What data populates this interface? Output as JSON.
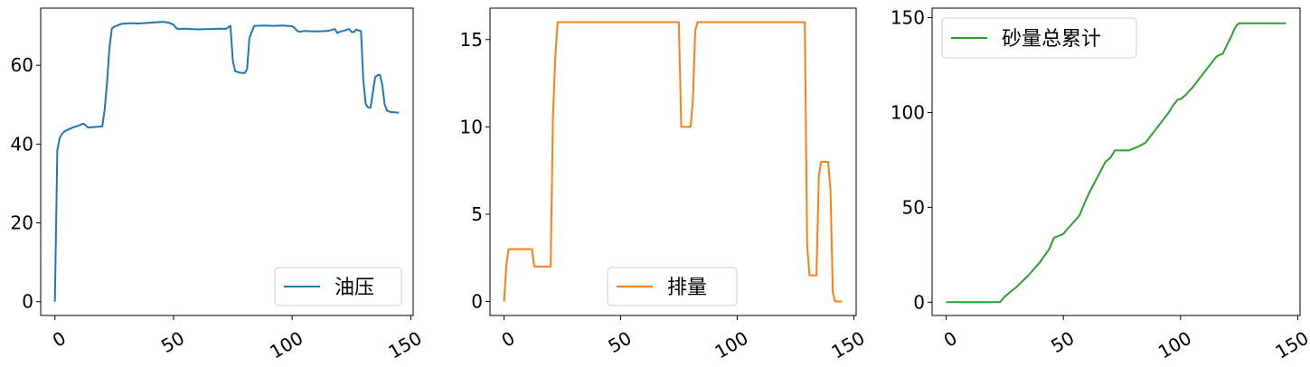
{
  "chart_data": [
    {
      "type": "line",
      "xlim": [
        -6,
        151
      ],
      "ylim": [
        -3.5,
        74.5
      ],
      "xticks": [
        0,
        50,
        100,
        150
      ],
      "yticks": [
        0,
        20,
        40,
        60
      ],
      "legend": "bottom-right",
      "series": [
        {
          "name": "油压",
          "color": "#1f77b4",
          "x": [
            0,
            1,
            2,
            3,
            4,
            6,
            8,
            10,
            12,
            13,
            14,
            16,
            18,
            20,
            21,
            22,
            23,
            24,
            25,
            26,
            28,
            30,
            32,
            35,
            40,
            45,
            46,
            48,
            50,
            51,
            52,
            55,
            60,
            65,
            70,
            72,
            74,
            75,
            76,
            78,
            80,
            81,
            82,
            84,
            88,
            92,
            96,
            98,
            100,
            101,
            102,
            103,
            105,
            110,
            115,
            118,
            119,
            120,
            122,
            124,
            125,
            126,
            127,
            128,
            129,
            130,
            131,
            132,
            133,
            134,
            135,
            136,
            137,
            138,
            139,
            140,
            141,
            142,
            143,
            144,
            145
          ],
          "values": [
            0,
            38.5,
            41.5,
            42.6,
            43.2,
            43.8,
            44.3,
            44.7,
            45.2,
            44.7,
            44.2,
            44.3,
            44.4,
            44.5,
            49,
            56,
            64.5,
            69.3,
            69.8,
            70,
            70.5,
            70.6,
            70.7,
            70.6,
            70.8,
            71,
            71,
            70.8,
            70.3,
            69.5,
            69.2,
            69.3,
            69.1,
            69.2,
            69.3,
            69.2,
            70,
            61,
            58.5,
            58.1,
            58,
            59,
            67,
            70,
            70.1,
            70,
            70.1,
            70,
            69.9,
            69.5,
            68.8,
            68.5,
            68.7,
            68.6,
            68.7,
            69.2,
            68.2,
            68.5,
            68.8,
            69.2,
            68.5,
            68.4,
            69.1,
            68.8,
            68.7,
            56,
            50.2,
            49.3,
            49.2,
            53,
            57,
            57.5,
            57.6,
            55,
            50,
            48.5,
            48.2,
            48.1,
            48.1,
            48,
            48
          ]
        }
      ]
    },
    {
      "type": "line",
      "xlim": [
        -6,
        151
      ],
      "ylim": [
        -0.8,
        16.8
      ],
      "xticks": [
        0,
        50,
        100,
        150
      ],
      "yticks": [
        0,
        5,
        10,
        15
      ],
      "legend": "bottom-center",
      "series": [
        {
          "name": "排量",
          "color": "#ff7f0e",
          "x": [
            0,
            1,
            2,
            12,
            13,
            20,
            21,
            22,
            23,
            75,
            76,
            80,
            81,
            82,
            83,
            129,
            130,
            131,
            132,
            133,
            134,
            135,
            136,
            137,
            138,
            139,
            140,
            141,
            142,
            143,
            144,
            145
          ],
          "values": [
            0,
            2.1,
            3,
            3,
            2,
            2,
            10.5,
            14,
            16,
            16,
            10,
            10,
            11.5,
            15.5,
            16,
            16,
            3.2,
            1.5,
            1.5,
            1.5,
            1.5,
            7.2,
            8,
            8,
            8,
            8,
            6.4,
            0.5,
            0,
            0,
            0,
            0
          ]
        }
      ]
    },
    {
      "type": "line",
      "xlim": [
        -6,
        151
      ],
      "ylim": [
        -7,
        155
      ],
      "xticks": [
        0,
        50,
        100,
        150
      ],
      "yticks": [
        0,
        50,
        100,
        150
      ],
      "legend": "top-left",
      "series": [
        {
          "name": "砂量总累计",
          "color": "#2ca02c",
          "x": [
            0,
            10,
            20,
            23,
            25,
            30,
            35,
            40,
            44,
            46,
            48,
            50,
            52,
            55,
            57,
            58,
            60,
            62,
            65,
            68,
            70,
            71,
            72,
            74,
            76,
            78,
            80,
            82,
            85,
            90,
            95,
            97,
            99,
            100,
            102,
            105,
            110,
            115,
            116,
            118,
            120,
            122,
            123,
            124,
            125,
            130,
            135,
            140,
            145
          ],
          "values": [
            0,
            0,
            0,
            0,
            3,
            8,
            14,
            21,
            28,
            34,
            35,
            36,
            39,
            43,
            46,
            49,
            55,
            60,
            67,
            74,
            76,
            78,
            80,
            80,
            80,
            80,
            81,
            82,
            84,
            92,
            100,
            104,
            107,
            107,
            109,
            113,
            121,
            129,
            130,
            131,
            136,
            141,
            144,
            146,
            147,
            147,
            147,
            147,
            147
          ]
        }
      ]
    }
  ]
}
